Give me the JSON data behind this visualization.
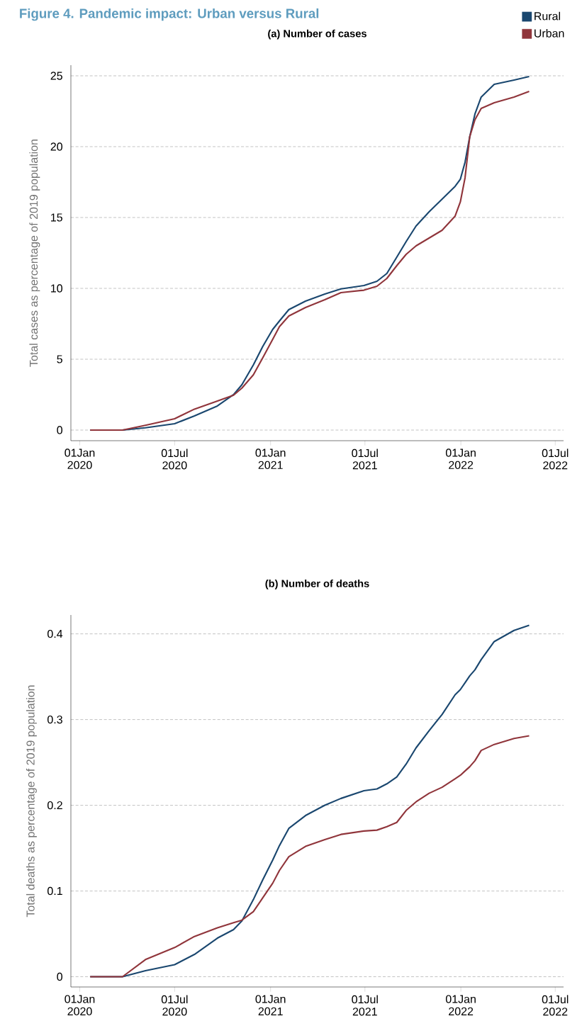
{
  "chart_data": [
    {
      "type": "line",
      "title": "Figure 4. Pandemic impact: Urban versus Rural",
      "subtitle": "(a) Number of cases",
      "ylabel": "Total cases as percentage of 2019 population",
      "x": [
        "2020-01-21",
        "2020-03-23",
        "2020-05-06",
        "2020-07-01",
        "2020-08-08",
        "2020-09-21",
        "2020-10-22",
        "2020-11-07",
        "2020-11-29",
        "2020-12-17",
        "2021-01-05",
        "2021-01-18",
        "2021-02-05",
        "2021-03-09",
        "2021-04-15",
        "2021-05-16",
        "2021-06-29",
        "2021-07-24",
        "2021-08-12",
        "2021-08-31",
        "2021-09-18",
        "2021-10-07",
        "2021-11-01",
        "2021-11-26",
        "2021-12-21",
        "2021-12-31",
        "2022-01-09",
        "2022-01-18",
        "2022-01-28",
        "2022-02-09",
        "2022-03-06",
        "2022-04-13",
        "2022-05-12"
      ],
      "series": [
        {
          "name": "Rural",
          "color": "#1a476f",
          "values": [
            0,
            0,
            0.16,
            0.45,
            1.0,
            1.7,
            2.5,
            3.2,
            4.6,
            5.9,
            7.1,
            7.7,
            8.5,
            9.1,
            9.6,
            9.96,
            10.2,
            10.5,
            11.05,
            12.2,
            13.3,
            14.4,
            15.4,
            16.3,
            17.2,
            17.7,
            18.9,
            20.7,
            22.3,
            23.5,
            24.4,
            24.7,
            24.95
          ]
        },
        {
          "name": "Urban",
          "color": "#90353b",
          "values": [
            0,
            0,
            0.34,
            0.8,
            1.48,
            2.05,
            2.46,
            2.96,
            3.9,
            5.1,
            6.4,
            7.3,
            8.05,
            8.65,
            9.2,
            9.7,
            9.87,
            10.15,
            10.7,
            11.6,
            12.4,
            13.0,
            13.55,
            14.1,
            15.1,
            16.1,
            17.8,
            20.7,
            21.9,
            22.7,
            23.1,
            23.5,
            23.9
          ]
        }
      ],
      "xlim": [
        "2019-12-15",
        "2022-07-17"
      ],
      "xticks": [
        {
          "value": "2020-01-01",
          "label": "01Jan 2020"
        },
        {
          "value": "2020-07-01",
          "label": "01Jul 2020"
        },
        {
          "value": "2021-01-01",
          "label": "01Jan 2021"
        },
        {
          "value": "2021-07-01",
          "label": "01Jul 2021"
        },
        {
          "value": "2022-01-01",
          "label": "01Jan 2022"
        },
        {
          "value": "2022-07-01",
          "label": "01Jul 2022"
        }
      ],
      "ylim": [
        -0.75,
        25.75
      ],
      "yticks": [
        0,
        5,
        10,
        15,
        20,
        25
      ],
      "grid": "y",
      "legend": "top right",
      "line_style": "solid",
      "marker": "none"
    },
    {
      "type": "line",
      "title": "(b) Number of deaths",
      "ylabel": "Total deaths as percentage of 2019 population",
      "x": [
        "2020-01-21",
        "2020-03-23",
        "2020-05-06",
        "2020-07-01",
        "2020-08-08",
        "2020-09-21",
        "2020-10-22",
        "2020-11-07",
        "2020-11-29",
        "2020-12-17",
        "2021-01-05",
        "2021-01-18",
        "2021-02-05",
        "2021-03-09",
        "2021-04-15",
        "2021-05-16",
        "2021-06-29",
        "2021-07-24",
        "2021-08-12",
        "2021-08-31",
        "2021-09-18",
        "2021-10-07",
        "2021-11-01",
        "2021-11-26",
        "2021-12-21",
        "2021-12-31",
        "2022-01-09",
        "2022-01-18",
        "2022-01-28",
        "2022-02-09",
        "2022-03-06",
        "2022-04-13",
        "2022-05-12"
      ],
      "series": [
        {
          "color": "#1a476f",
          "values": [
            0,
            0,
            0.007,
            0.014,
            0.026,
            0.045,
            0.055,
            0.065,
            0.09,
            0.113,
            0.136,
            0.153,
            0.173,
            0.188,
            0.2,
            0.208,
            0.217,
            0.219,
            0.225,
            0.233,
            0.248,
            0.267,
            0.287,
            0.306,
            0.329,
            0.335,
            0.343,
            0.351,
            0.358,
            0.37,
            0.391,
            0.404,
            0.41
          ]
        },
        {
          "color": "#90353b",
          "values": [
            0,
            0,
            0.02,
            0.034,
            0.047,
            0.057,
            0.063,
            0.066,
            0.076,
            0.092,
            0.109,
            0.124,
            0.14,
            0.152,
            0.16,
            0.166,
            0.17,
            0.171,
            0.175,
            0.18,
            0.194,
            0.204,
            0.214,
            0.221,
            0.231,
            0.235,
            0.24,
            0.245,
            0.252,
            0.264,
            0.271,
            0.278,
            0.281
          ]
        }
      ],
      "xlim": [
        "2019-12-15",
        "2022-07-17"
      ],
      "xticks": [
        {
          "value": "2020-01-01",
          "label": "01Jan 2020"
        },
        {
          "value": "2020-07-01",
          "label": "01Jul 2020"
        },
        {
          "value": "2021-01-01",
          "label": "01Jan 2021"
        },
        {
          "value": "2021-07-01",
          "label": "01Jul 2021"
        },
        {
          "value": "2022-01-01",
          "label": "01Jan 2022"
        },
        {
          "value": "2022-07-01",
          "label": "01Jul 2022"
        }
      ],
      "ylim": [
        -0.012,
        0.422
      ],
      "yticks": [
        0,
        0.1,
        0.2,
        0.3,
        0.4
      ],
      "grid": "y",
      "line_style": "solid",
      "marker": "none"
    }
  ]
}
